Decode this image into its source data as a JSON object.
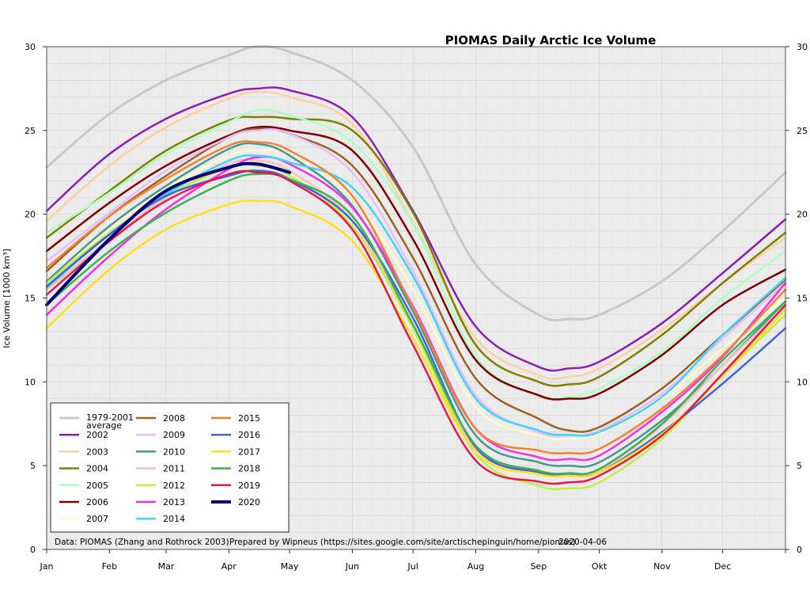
{
  "chart_data": {
    "type": "line",
    "title": "PIOMAS Daily Arctic Ice Volume",
    "ylabel": "Ice Volume [1000 km³]",
    "xlabel": "",
    "ylim": [
      0,
      30
    ],
    "xlim": [
      1,
      366
    ],
    "grid": true,
    "legend_position": "bottom-left",
    "y_ticks": [
      0,
      5,
      10,
      15,
      20,
      25,
      30
    ],
    "x_ticks": [
      {
        "label": "Jan",
        "day": 1
      },
      {
        "label": "Feb",
        "day": 32
      },
      {
        "label": "Mar",
        "day": 60
      },
      {
        "label": "Apr",
        "day": 91
      },
      {
        "label": "May",
        "day": 121
      },
      {
        "label": "Jun",
        "day": 152
      },
      {
        "label": "Jul",
        "day": 182
      },
      {
        "label": "Aug",
        "day": 213
      },
      {
        "label": "Sep",
        "day": 244
      },
      {
        "label": "Okt",
        "day": 274
      },
      {
        "label": "Nov",
        "day": 305
      },
      {
        "label": "Dec",
        "day": 335
      }
    ],
    "footer": {
      "source": "Data: PIOMAS (Zhang and Rothrock 2003)",
      "credit": "Prepared by Wipneus (https://sites.google.com/site/arctischepinguin/home/piomas)",
      "date": "2020-04-06"
    },
    "legend_order": [
      "1979-2001 average",
      "2002",
      "2003",
      "2004",
      "2005",
      "2006",
      "2007",
      "2008",
      "2009",
      "2010",
      "2011",
      "2012",
      "2013",
      "2014",
      "2015",
      "2016",
      "2017",
      "2018",
      "2019",
      "2020"
    ],
    "x": [
      1,
      31,
      60,
      91,
      105,
      121,
      152,
      182,
      213,
      244,
      259,
      274,
      305,
      335,
      366
    ],
    "series": [
      {
        "name": "1979-2001 average",
        "color": "#c8c8c8",
        "width": 3,
        "values": [
          22.8,
          25.9,
          28.0,
          29.5,
          30.0,
          29.7,
          28.0,
          24.0,
          17.0,
          14.0,
          13.75,
          14.0,
          16.0,
          19.0,
          22.5
        ]
      },
      {
        "name": "2002",
        "color": "#8b1fb5",
        "width": 2.5,
        "values": [
          20.2,
          23.5,
          25.7,
          27.2,
          27.5,
          27.4,
          25.8,
          20.2,
          13.3,
          10.9,
          10.8,
          11.2,
          13.5,
          16.5,
          19.7
        ]
      },
      {
        "name": "2003",
        "color": "#fdd0a2",
        "width": 2.5,
        "values": [
          19.6,
          22.8,
          25.2,
          26.9,
          27.3,
          27.0,
          25.4,
          19.5,
          12.6,
          10.4,
          10.3,
          10.8,
          13.1,
          15.9,
          18.6
        ]
      },
      {
        "name": "2004",
        "color": "#808000",
        "width": 2.5,
        "values": [
          18.6,
          21.3,
          23.8,
          25.6,
          25.8,
          25.7,
          25.0,
          20.1,
          12.2,
          10.0,
          9.85,
          10.3,
          12.8,
          15.9,
          18.9
        ]
      },
      {
        "name": "2005",
        "color": "#aaffc3",
        "width": 2.5,
        "values": [
          18.9,
          21.2,
          23.6,
          25.5,
          26.2,
          25.9,
          24.3,
          19.4,
          11.5,
          9.2,
          9.1,
          9.6,
          11.8,
          15.0,
          17.8
        ]
      },
      {
        "name": "2006",
        "color": "#800000",
        "width": 2.5,
        "values": [
          17.8,
          20.6,
          22.9,
          24.7,
          25.2,
          25.0,
          23.8,
          18.5,
          11.3,
          9.2,
          9.0,
          9.3,
          11.6,
          14.6,
          16.7
        ]
      },
      {
        "name": "2007",
        "color": "#fffac8",
        "width": 2.5,
        "values": [
          16.0,
          19.0,
          21.5,
          23.5,
          23.8,
          23.5,
          21.0,
          15.5,
          8.5,
          6.8,
          6.6,
          6.9,
          9.0,
          12.0,
          15.0
        ]
      },
      {
        "name": "2008",
        "color": "#9a6324",
        "width": 2.5,
        "values": [
          16.6,
          19.8,
          22.3,
          24.6,
          25.1,
          24.8,
          22.9,
          17.4,
          10.2,
          7.8,
          7.1,
          7.3,
          9.6,
          12.8,
          16.1
        ]
      },
      {
        "name": "2009",
        "color": "#e6beff",
        "width": 2.5,
        "values": [
          17.2,
          20.0,
          22.6,
          24.6,
          25.0,
          24.8,
          22.5,
          16.6,
          9.2,
          7.0,
          6.8,
          7.1,
          9.3,
          12.6,
          15.9
        ]
      },
      {
        "name": "2010",
        "color": "#469990",
        "width": 2.5,
        "values": [
          16.0,
          19.2,
          21.7,
          23.9,
          24.2,
          23.5,
          20.5,
          14.2,
          6.8,
          5.2,
          5.0,
          5.2,
          7.7,
          11.0,
          14.8
        ]
      },
      {
        "name": "2011",
        "color": "#fabebe",
        "width": 2.5,
        "values": [
          15.5,
          18.4,
          21.0,
          23.0,
          23.2,
          22.6,
          19.6,
          13.2,
          6.0,
          4.6,
          4.4,
          4.7,
          7.4,
          11.0,
          14.5
        ]
      },
      {
        "name": "2012",
        "color": "#bfef45",
        "width": 2.5,
        "values": [
          15.9,
          18.8,
          21.1,
          22.8,
          22.9,
          22.3,
          19.3,
          13.2,
          5.7,
          3.8,
          3.65,
          4.0,
          6.6,
          10.4,
          14.0
        ]
      },
      {
        "name": "2013",
        "color": "#f032e6",
        "width": 2.5,
        "values": [
          14.0,
          17.4,
          20.3,
          22.7,
          23.4,
          23.0,
          20.4,
          14.5,
          7.2,
          5.5,
          5.4,
          5.6,
          8.2,
          11.5,
          15.9
        ]
      },
      {
        "name": "2014",
        "color": "#42d4f4",
        "width": 2.5,
        "values": [
          15.6,
          18.7,
          21.2,
          23.2,
          23.5,
          23.1,
          21.6,
          16.3,
          9.0,
          7.1,
          6.85,
          7.0,
          9.1,
          12.8,
          16.2
        ]
      },
      {
        "name": "2015",
        "color": "#f58231",
        "width": 2.5,
        "values": [
          16.8,
          19.8,
          22.1,
          24.1,
          24.3,
          23.8,
          21.1,
          14.4,
          7.2,
          5.9,
          5.75,
          6.0,
          8.4,
          11.6,
          15.5
        ]
      },
      {
        "name": "2016",
        "color": "#4363d8",
        "width": 2.5,
        "values": [
          15.7,
          18.7,
          21.1,
          22.3,
          22.6,
          22.1,
          19.6,
          13.8,
          6.1,
          4.6,
          4.45,
          4.6,
          7.0,
          9.9,
          13.2
        ]
      },
      {
        "name": "2017",
        "color": "#ffe119",
        "width": 2.5,
        "values": [
          13.2,
          16.6,
          19.1,
          20.6,
          20.8,
          20.5,
          18.4,
          12.6,
          5.8,
          4.5,
          4.4,
          4.6,
          6.9,
          10.4,
          14.3
        ]
      },
      {
        "name": "2018",
        "color": "#3cb44b",
        "width": 2.5,
        "values": [
          14.6,
          17.7,
          20.1,
          22.0,
          22.4,
          22.1,
          19.9,
          13.4,
          6.2,
          4.7,
          4.55,
          4.8,
          7.5,
          11.3,
          14.8
        ]
      },
      {
        "name": "2019",
        "color": "#e6194b",
        "width": 2.5,
        "values": [
          15.2,
          18.3,
          20.8,
          22.4,
          22.5,
          22.0,
          19.1,
          12.2,
          5.3,
          4.05,
          4.0,
          4.4,
          6.8,
          10.5,
          14.6
        ]
      },
      {
        "name": "2020",
        "color": "#000075",
        "width": 4,
        "x": [
          1,
          31,
          60,
          91,
          105,
          121
        ],
        "values": [
          14.6,
          18.4,
          21.4,
          22.8,
          23.0,
          22.5
        ]
      }
    ]
  }
}
